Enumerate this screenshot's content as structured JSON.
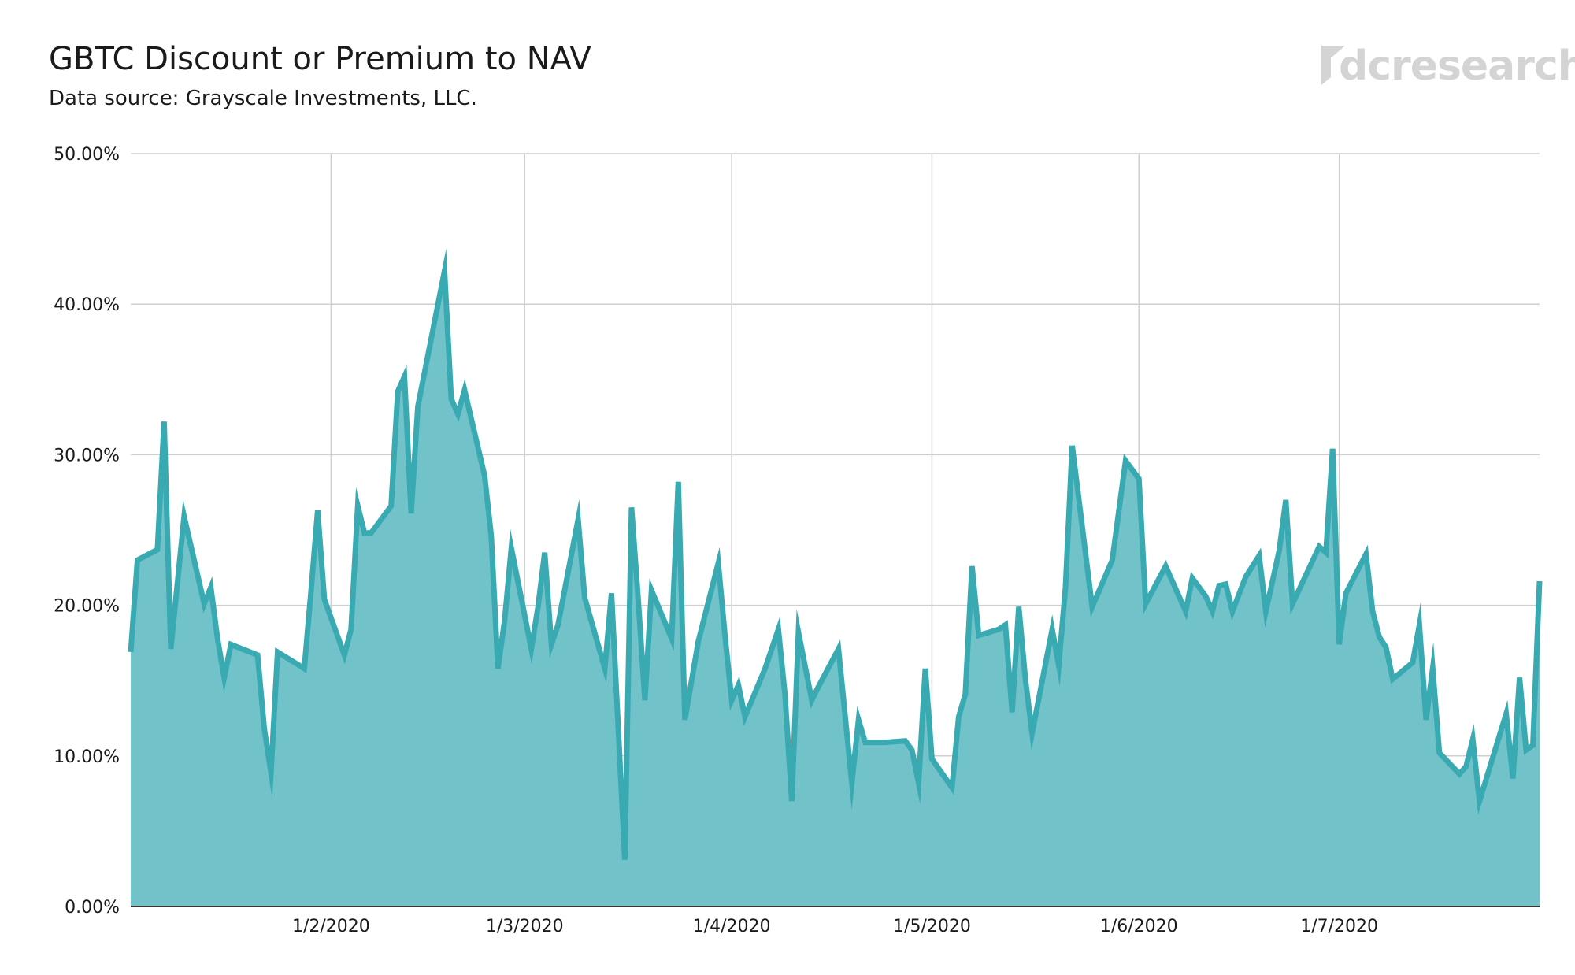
{
  "chart_data": {
    "type": "area",
    "title": "GBTC Discount or Premium to NAV",
    "subtitle": "Data source: Grayscale Investments, LLC.",
    "xlabel": "",
    "ylabel": "",
    "ylim": [
      0,
      50
    ],
    "y_ticks": [
      {
        "value": 0,
        "label": "0.00%"
      },
      {
        "value": 10,
        "label": "10.00%"
      },
      {
        "value": 20,
        "label": "20.00%"
      },
      {
        "value": 30,
        "label": "30.00%"
      },
      {
        "value": 40,
        "label": "40.00%"
      },
      {
        "value": 50,
        "label": "50.00%"
      }
    ],
    "x_range": [
      "2020-01-02",
      "2020-07-31"
    ],
    "x_ticks": [
      {
        "value": "2020-02-01",
        "label": "1/2/2020"
      },
      {
        "value": "2020-03-01",
        "label": "1/3/2020"
      },
      {
        "value": "2020-04-01",
        "label": "1/4/2020"
      },
      {
        "value": "2020-05-01",
        "label": "1/5/2020"
      },
      {
        "value": "2020-06-01",
        "label": "1/6/2020"
      },
      {
        "value": "2020-07-01",
        "label": "1/7/2020"
      }
    ],
    "grid": true,
    "line_color": "#3aaab2",
    "fill_color": "#72c2ca",
    "series": [
      {
        "points": [
          [
            "2020-01-02",
            16.9
          ],
          [
            "2020-01-03",
            23.0
          ],
          [
            "2020-01-06",
            23.7
          ],
          [
            "2020-01-07",
            32.2
          ],
          [
            "2020-01-08",
            17.1
          ],
          [
            "2020-01-10",
            25.9
          ],
          [
            "2020-01-13",
            20.1
          ],
          [
            "2020-01-14",
            21.2
          ],
          [
            "2020-01-15",
            17.8
          ],
          [
            "2020-01-16",
            15.2
          ],
          [
            "2020-01-17",
            17.4
          ],
          [
            "2020-01-21",
            16.7
          ],
          [
            "2020-01-22",
            11.8
          ],
          [
            "2020-01-23",
            8.9
          ],
          [
            "2020-01-24",
            16.9
          ],
          [
            "2020-01-28",
            15.8
          ],
          [
            "2020-01-29",
            20.9
          ],
          [
            "2020-01-30",
            26.3
          ],
          [
            "2020-01-31",
            20.4
          ],
          [
            "2020-02-03",
            16.7
          ],
          [
            "2020-02-04",
            18.4
          ],
          [
            "2020-02-05",
            26.6
          ],
          [
            "2020-02-06",
            24.8
          ],
          [
            "2020-02-07",
            24.8
          ],
          [
            "2020-02-10",
            26.6
          ],
          [
            "2020-02-11",
            34.2
          ],
          [
            "2020-02-12",
            35.2
          ],
          [
            "2020-02-13",
            26.1
          ],
          [
            "2020-02-14",
            33.2
          ],
          [
            "2020-02-18",
            42.2
          ],
          [
            "2020-02-19",
            33.7
          ],
          [
            "2020-02-20",
            32.7
          ],
          [
            "2020-02-21",
            34.3
          ],
          [
            "2020-02-24",
            28.6
          ],
          [
            "2020-02-25",
            24.6
          ],
          [
            "2020-02-26",
            15.8
          ],
          [
            "2020-02-27",
            19.0
          ],
          [
            "2020-02-28",
            23.8
          ],
          [
            "2020-03-02",
            17.1
          ],
          [
            "2020-03-03",
            19.9
          ],
          [
            "2020-03-04",
            23.5
          ],
          [
            "2020-03-05",
            17.4
          ],
          [
            "2020-03-06",
            18.7
          ],
          [
            "2020-03-09",
            25.7
          ],
          [
            "2020-03-10",
            20.5
          ],
          [
            "2020-03-13",
            15.8
          ],
          [
            "2020-03-14",
            20.8
          ],
          [
            "2020-03-16",
            3.1
          ],
          [
            "2020-03-17",
            26.5
          ],
          [
            "2020-03-18",
            20.4
          ],
          [
            "2020-03-19",
            13.7
          ],
          [
            "2020-03-20",
            21.0
          ],
          [
            "2020-03-23",
            17.8
          ],
          [
            "2020-03-24",
            28.2
          ],
          [
            "2020-03-25",
            12.4
          ],
          [
            "2020-03-27",
            17.6
          ],
          [
            "2020-03-30",
            22.8
          ],
          [
            "2020-03-31",
            18.0
          ],
          [
            "2020-04-01",
            13.7
          ],
          [
            "2020-04-02",
            14.7
          ],
          [
            "2020-04-03",
            12.6
          ],
          [
            "2020-04-06",
            15.8
          ],
          [
            "2020-04-08",
            18.4
          ],
          [
            "2020-04-09",
            14.0
          ],
          [
            "2020-04-10",
            7.0
          ],
          [
            "2020-04-11",
            18.2
          ],
          [
            "2020-04-13",
            13.7
          ],
          [
            "2020-04-14",
            14.6
          ],
          [
            "2020-04-17",
            17.1
          ],
          [
            "2020-04-19",
            8.2
          ],
          [
            "2020-04-20",
            12.4
          ],
          [
            "2020-04-21",
            10.9
          ],
          [
            "2020-04-24",
            10.9
          ],
          [
            "2020-04-27",
            11.0
          ],
          [
            "2020-04-28",
            10.4
          ],
          [
            "2020-04-29",
            8.2
          ],
          [
            "2020-04-30",
            15.8
          ],
          [
            "2020-05-01",
            9.8
          ],
          [
            "2020-05-04",
            7.9
          ],
          [
            "2020-05-05",
            12.6
          ],
          [
            "2020-05-06",
            14.1
          ],
          [
            "2020-05-07",
            22.6
          ],
          [
            "2020-05-08",
            18.0
          ],
          [
            "2020-05-11",
            18.4
          ],
          [
            "2020-05-12",
            18.7
          ],
          [
            "2020-05-13",
            12.9
          ],
          [
            "2020-05-14",
            19.9
          ],
          [
            "2020-05-15",
            15.1
          ],
          [
            "2020-05-16",
            11.5
          ],
          [
            "2020-05-19",
            18.4
          ],
          [
            "2020-05-20",
            16.0
          ],
          [
            "2020-05-21",
            21.2
          ],
          [
            "2020-05-22",
            30.6
          ],
          [
            "2020-05-25",
            19.9
          ],
          [
            "2020-05-28",
            23.0
          ],
          [
            "2020-05-30",
            29.6
          ],
          [
            "2020-06-01",
            28.4
          ],
          [
            "2020-06-02",
            20.1
          ],
          [
            "2020-06-05",
            22.6
          ],
          [
            "2020-06-08",
            19.6
          ],
          [
            "2020-06-09",
            21.8
          ],
          [
            "2020-06-11",
            20.6
          ],
          [
            "2020-06-12",
            19.6
          ],
          [
            "2020-06-13",
            21.3
          ],
          [
            "2020-06-14",
            21.4
          ],
          [
            "2020-06-15",
            19.6
          ],
          [
            "2020-06-17",
            21.9
          ],
          [
            "2020-06-19",
            23.3
          ],
          [
            "2020-06-20",
            19.6
          ],
          [
            "2020-06-22",
            23.6
          ],
          [
            "2020-06-23",
            27.0
          ],
          [
            "2020-06-24",
            20.1
          ],
          [
            "2020-06-28",
            23.9
          ],
          [
            "2020-06-29",
            23.5
          ],
          [
            "2020-06-30",
            30.4
          ],
          [
            "2020-07-01",
            17.4
          ],
          [
            "2020-07-02",
            20.8
          ],
          [
            "2020-07-05",
            23.4
          ],
          [
            "2020-07-06",
            19.6
          ],
          [
            "2020-07-07",
            17.9
          ],
          [
            "2020-07-08",
            17.2
          ],
          [
            "2020-07-09",
            15.1
          ],
          [
            "2020-07-12",
            16.2
          ],
          [
            "2020-07-13",
            18.7
          ],
          [
            "2020-07-14",
            12.4
          ],
          [
            "2020-07-15",
            15.8
          ],
          [
            "2020-07-16",
            10.2
          ],
          [
            "2020-07-19",
            8.8
          ],
          [
            "2020-07-20",
            9.3
          ],
          [
            "2020-07-21",
            11.1
          ],
          [
            "2020-07-22",
            7.0
          ],
          [
            "2020-07-26",
            12.8
          ],
          [
            "2020-07-27",
            8.5
          ],
          [
            "2020-07-28",
            15.2
          ],
          [
            "2020-07-29",
            10.4
          ],
          [
            "2020-07-30",
            10.7
          ],
          [
            "2020-07-31",
            21.6
          ]
        ]
      }
    ]
  },
  "logo": {
    "text": "dcresearch"
  }
}
